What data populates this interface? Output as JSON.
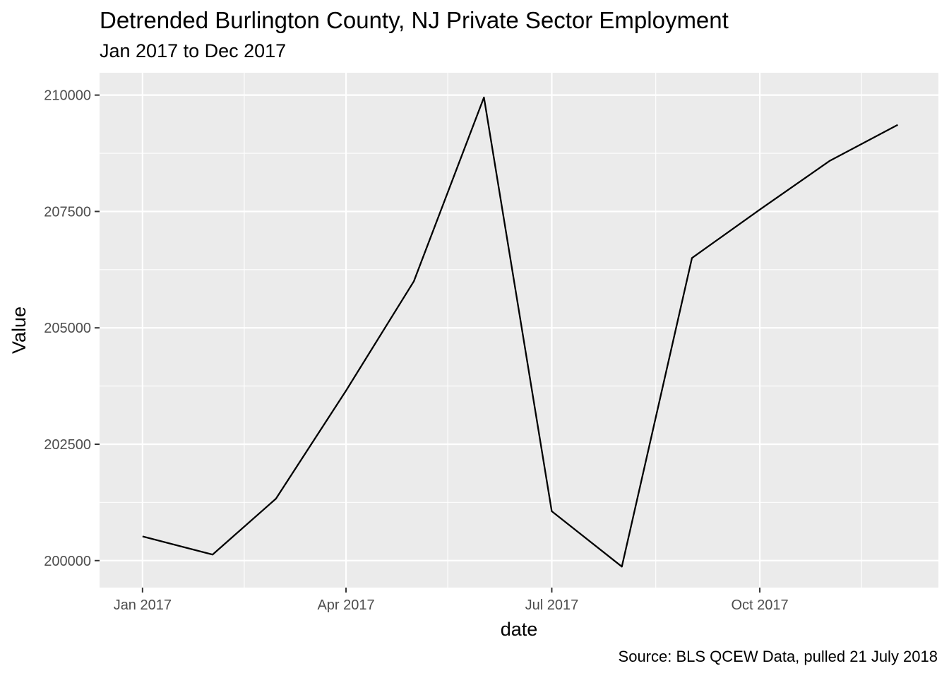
{
  "chart_data": {
    "type": "line",
    "title": "Detrended Burlington County, NJ Private Sector Employment",
    "subtitle": "Jan 2017 to Dec 2017",
    "caption": "Source: BLS QCEW Data, pulled 21 July 2018",
    "xlabel": "date",
    "ylabel": "Value",
    "x": [
      "2017-01-01",
      "2017-02-01",
      "2017-03-01",
      "2017-04-01",
      "2017-05-01",
      "2017-06-01",
      "2017-07-01",
      "2017-08-01",
      "2017-09-01",
      "2017-10-01",
      "2017-11-01",
      "2017-12-01"
    ],
    "series": [
      {
        "values": [
          200520,
          200130,
          201330,
          203650,
          206000,
          209950,
          201060,
          199870,
          206500,
          207540,
          208590,
          209360
        ]
      }
    ],
    "xlim": [
      "2016-12-13",
      "2017-12-19"
    ],
    "ylim": [
      199420,
      210480
    ],
    "x_ticks": [
      {
        "date": "2017-01-01",
        "label": "Jan 2017"
      },
      {
        "date": "2017-04-01",
        "label": "Apr 2017"
      },
      {
        "date": "2017-07-01",
        "label": "Jul 2017"
      },
      {
        "date": "2017-10-01",
        "label": "Oct 2017"
      }
    ],
    "x_minor_ticks": [
      "2017-02-15",
      "2017-05-16",
      "2017-08-16",
      "2017-11-15"
    ],
    "y_ticks": [
      200000,
      202500,
      205000,
      207500,
      210000
    ],
    "y_tick_labels": [
      "200000",
      "202500",
      "205000",
      "207500",
      "210000"
    ],
    "grid": true,
    "colors": {
      "panel": "#ebebeb",
      "grid": "#ffffff",
      "line": "#000000",
      "tick_text": "#4d4d4d"
    }
  }
}
